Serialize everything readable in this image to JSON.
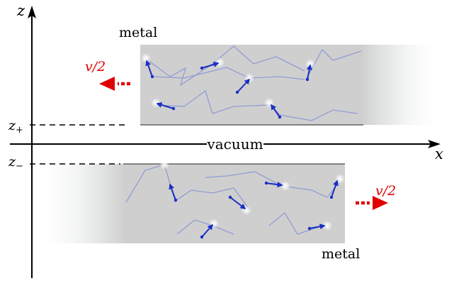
{
  "labels": {
    "z_axis": "z",
    "x_axis": "x",
    "z_plus": "z",
    "z_plus_sub": "+",
    "z_minus": "z",
    "z_minus_sub": "−",
    "vacuum": "vacuum",
    "metal_top": "metal",
    "metal_bottom": "metal",
    "velocity_top": "v/2",
    "velocity_bottom": "v/2"
  },
  "colors": {
    "metal_fill": "#cfcfcf",
    "arrow_blue": "#1a2fc2",
    "trail_blue": "#7d8cd8",
    "velocity_red": "#e00000",
    "axis": "#000000"
  },
  "icons": {
    "left_velocity": "arrow-left-dashed-icon",
    "right_velocity": "arrow-right-dashed-icon"
  }
}
